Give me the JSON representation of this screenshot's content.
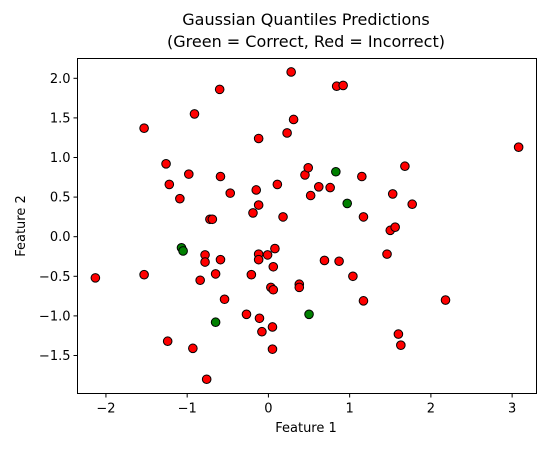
{
  "chart_data": {
    "type": "scatter",
    "title": "Gaussian Quantiles Predictions",
    "subtitle": "(Green = Correct, Red = Incorrect)",
    "xlabel": "Feature 1",
    "ylabel": "Feature 2",
    "xlim": [
      -2.35,
      3.3
    ],
    "ylim": [
      -1.98,
      2.25
    ],
    "xticks": [
      -2,
      -1,
      0,
      1,
      2,
      3
    ],
    "xtick_labels": [
      "−2",
      "−1",
      "0",
      "1",
      "2",
      "3"
    ],
    "yticks": [
      -1.5,
      -1.0,
      -0.5,
      0.0,
      0.5,
      1.0,
      1.5,
      2.0
    ],
    "ytick_labels": [
      "−1.5",
      "−1.0",
      "−0.5",
      "0.0",
      "0.5",
      "1.0",
      "1.5",
      "2.0"
    ],
    "grid": false,
    "colors": {
      "correct": "#008000",
      "incorrect": "#ff0000",
      "edge": "#000000"
    },
    "series": [
      {
        "status": "correct",
        "points": [
          [
            -1.07,
            -0.14
          ],
          [
            -1.05,
            -0.18
          ],
          [
            -0.65,
            -1.08
          ],
          [
            0.5,
            -0.98
          ],
          [
            0.83,
            0.82
          ],
          [
            0.97,
            0.42
          ]
        ]
      },
      {
        "status": "incorrect",
        "points": [
          [
            -2.13,
            -0.52
          ],
          [
            -1.53,
            1.37
          ],
          [
            -1.53,
            -0.48
          ],
          [
            -1.26,
            0.92
          ],
          [
            -1.22,
            0.66
          ],
          [
            -1.24,
            -1.32
          ],
          [
            -1.09,
            0.48
          ],
          [
            -0.98,
            0.79
          ],
          [
            -0.91,
            1.55
          ],
          [
            -0.93,
            -1.41
          ],
          [
            -0.84,
            -0.55
          ],
          [
            -0.78,
            -0.23
          ],
          [
            -0.78,
            -0.32
          ],
          [
            -0.76,
            -1.8
          ],
          [
            -0.72,
            0.22
          ],
          [
            -0.69,
            0.22
          ],
          [
            -0.65,
            -0.47
          ],
          [
            -0.6,
            1.86
          ],
          [
            -0.59,
            0.76
          ],
          [
            -0.59,
            -0.29
          ],
          [
            -0.54,
            -0.79
          ],
          [
            -0.47,
            0.55
          ],
          [
            -0.27,
            -0.98
          ],
          [
            -0.21,
            -0.48
          ],
          [
            -0.19,
            0.3
          ],
          [
            -0.15,
            0.59
          ],
          [
            -0.12,
            1.24
          ],
          [
            -0.12,
            0.4
          ],
          [
            -0.12,
            -0.22
          ],
          [
            -0.12,
            -0.29
          ],
          [
            -0.11,
            -1.03
          ],
          [
            -0.08,
            -1.2
          ],
          [
            -0.01,
            -0.23
          ],
          [
            0.03,
            -0.64
          ],
          [
            0.05,
            -1.14
          ],
          [
            0.05,
            -1.42
          ],
          [
            0.06,
            -0.67
          ],
          [
            0.06,
            -0.38
          ],
          [
            0.08,
            -0.15
          ],
          [
            0.11,
            0.66
          ],
          [
            0.18,
            0.25
          ],
          [
            0.23,
            1.31
          ],
          [
            0.28,
            2.08
          ],
          [
            0.31,
            1.48
          ],
          [
            0.38,
            -0.6
          ],
          [
            0.38,
            -0.64
          ],
          [
            0.45,
            0.78
          ],
          [
            0.49,
            0.87
          ],
          [
            0.52,
            0.52
          ],
          [
            0.62,
            0.63
          ],
          [
            0.69,
            -0.3
          ],
          [
            0.76,
            0.62
          ],
          [
            0.84,
            1.9
          ],
          [
            0.92,
            1.91
          ],
          [
            0.87,
            -0.31
          ],
          [
            1.04,
            -0.5
          ],
          [
            1.15,
            0.76
          ],
          [
            1.17,
            0.25
          ],
          [
            1.17,
            -0.81
          ],
          [
            1.46,
            -0.22
          ],
          [
            1.5,
            0.08
          ],
          [
            1.53,
            0.54
          ],
          [
            1.56,
            0.12
          ],
          [
            1.6,
            -1.23
          ],
          [
            1.63,
            -1.37
          ],
          [
            1.68,
            0.89
          ],
          [
            1.77,
            0.41
          ],
          [
            2.18,
            -0.8
          ],
          [
            3.08,
            1.13
          ]
        ]
      }
    ]
  }
}
